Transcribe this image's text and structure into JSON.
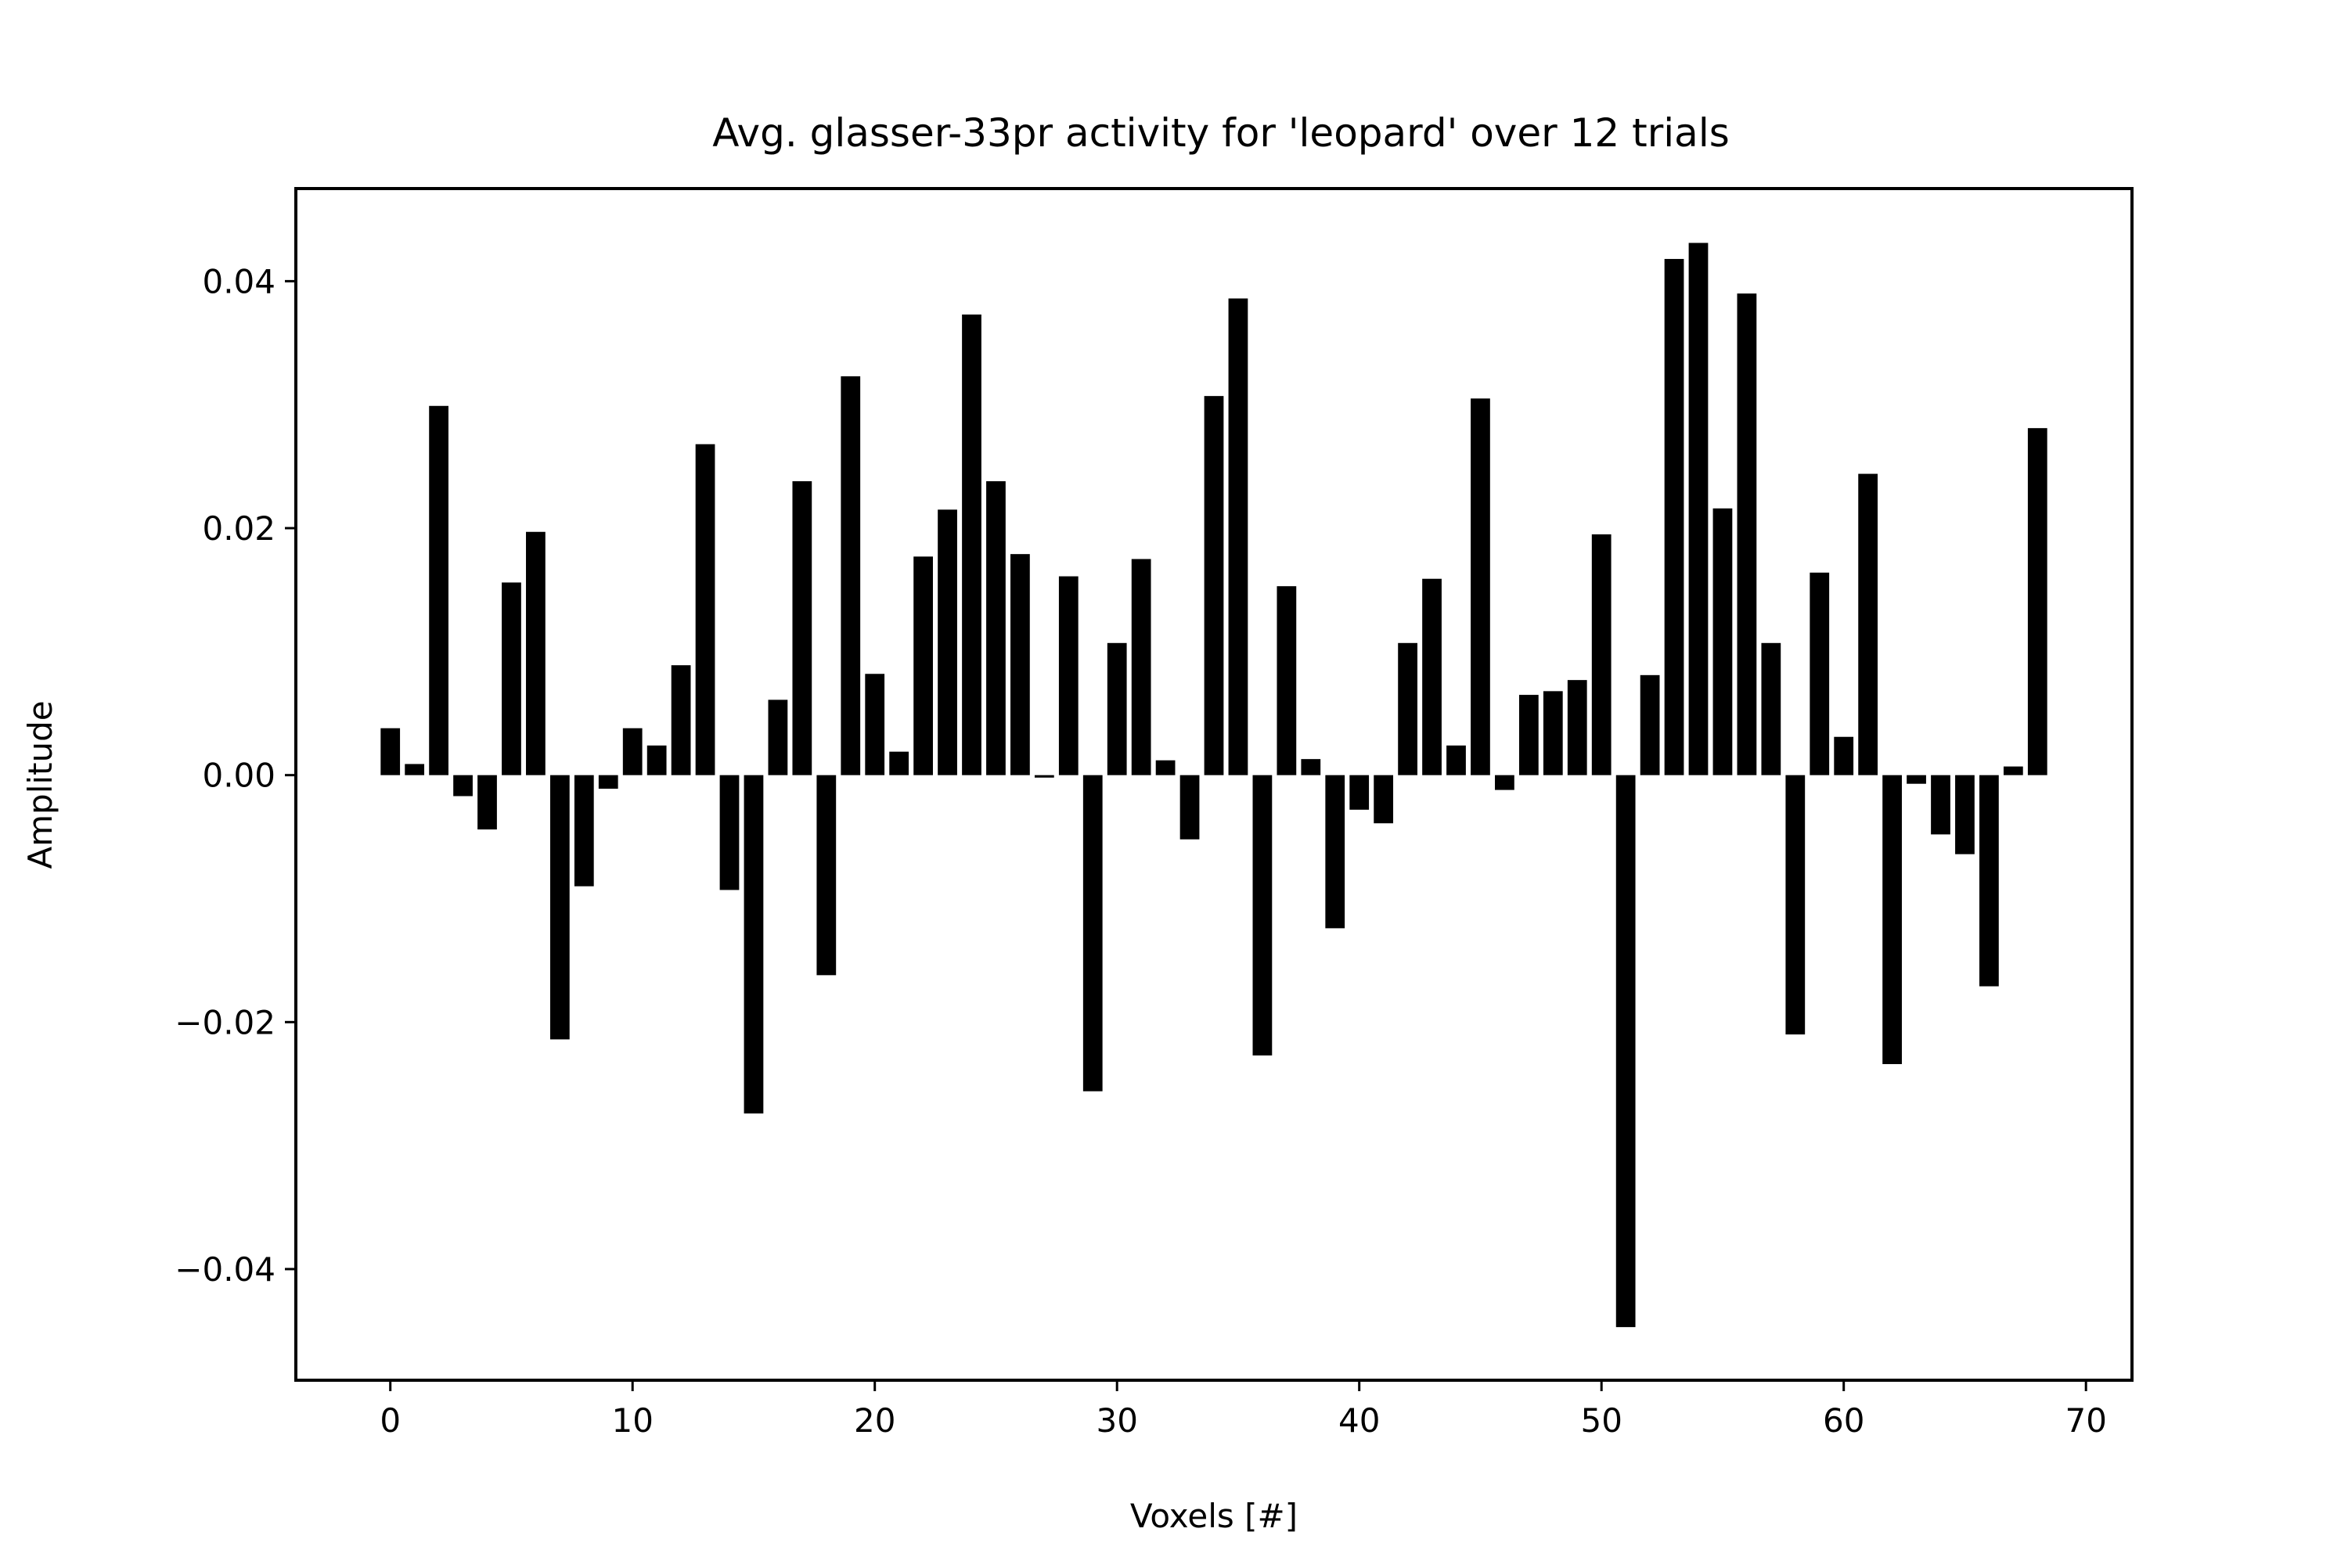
{
  "chart_data": {
    "type": "bar",
    "title": "Avg. glasser-33pr activity for 'leopard' over 12 trials",
    "xlabel": "Voxels [#]",
    "ylabel": "Amplitude",
    "xlim": [
      -3.9,
      71.9
    ],
    "ylim": [
      -0.049,
      0.0475
    ],
    "xticks": [
      0,
      10,
      20,
      30,
      40,
      50,
      60,
      70
    ],
    "xtick_labels": [
      "0",
      "10",
      "20",
      "30",
      "40",
      "50",
      "60",
      "70"
    ],
    "yticks": [
      -0.04,
      -0.02,
      0.0,
      0.02,
      0.04
    ],
    "ytick_labels": [
      "−0.04",
      "−0.02",
      "0.00",
      "0.02",
      "0.04"
    ],
    "grid": false,
    "bar_color": "#000000",
    "x": [
      0,
      1,
      2,
      3,
      4,
      5,
      6,
      7,
      8,
      9,
      10,
      11,
      12,
      13,
      14,
      15,
      16,
      17,
      18,
      19,
      20,
      21,
      22,
      23,
      24,
      25,
      26,
      27,
      28,
      29,
      30,
      31,
      32,
      33,
      34,
      35,
      36,
      37,
      38,
      39,
      40,
      41,
      42,
      43,
      44,
      45,
      46,
      47,
      48,
      49,
      50,
      51,
      52,
      53,
      54,
      55,
      56,
      57,
      58,
      59,
      60,
      61,
      62,
      63,
      64,
      65,
      66,
      67,
      68
    ],
    "values": [
      0.0038,
      0.0009,
      0.0299,
      -0.0017,
      -0.0044,
      0.0156,
      0.0197,
      -0.0214,
      -0.009,
      -0.0011,
      0.0038,
      0.0024,
      0.0089,
      0.0268,
      -0.0093,
      -0.0274,
      0.0061,
      0.0238,
      -0.0162,
      0.0323,
      0.0082,
      0.0019,
      0.0177,
      0.0215,
      0.0373,
      0.0238,
      0.0179,
      -0.0002,
      0.0161,
      -0.0256,
      0.0107,
      0.0175,
      0.0012,
      -0.0052,
      0.0307,
      0.0386,
      -0.0227,
      0.0153,
      0.0013,
      -0.0124,
      -0.0028,
      -0.0039,
      0.0107,
      0.0159,
      0.0024,
      0.0305,
      -0.0012,
      0.0065,
      0.0068,
      0.0077,
      0.0195,
      -0.0447,
      0.0081,
      0.0418,
      0.0431,
      0.0216,
      0.039,
      0.0107,
      -0.021,
      0.0164,
      0.0031,
      0.0244,
      -0.0234,
      -0.0007,
      -0.0048,
      -0.0064,
      -0.0171,
      0.0007,
      0.0281
    ]
  }
}
